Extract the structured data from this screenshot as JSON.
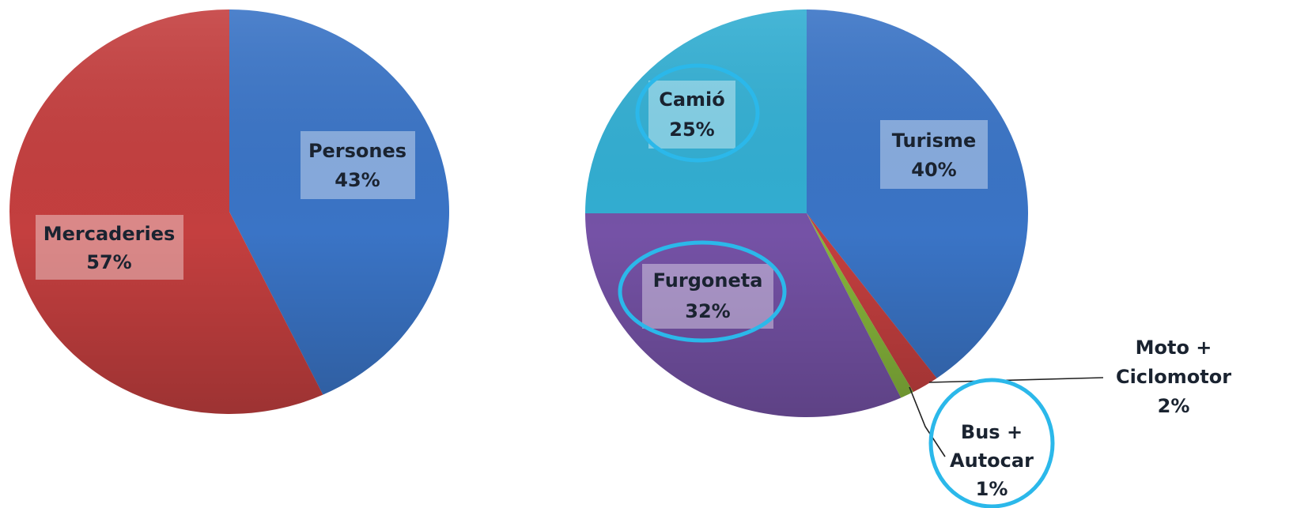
{
  "chart_data": [
    {
      "type": "pie",
      "slices": [
        {
          "label": "Persones",
          "pct_text": "43%",
          "value": 43,
          "color": "#3a74c6"
        },
        {
          "label": "Mercaderies",
          "pct_text": "57%",
          "value": 57,
          "color": "#c43f3f"
        }
      ]
    },
    {
      "type": "pie",
      "slices": [
        {
          "label": "Turisme",
          "pct_text": "40%",
          "value": 40,
          "color": "#3a74c6",
          "highlighted": false
        },
        {
          "label": "Moto + Ciclomotor",
          "pct_text": "2%",
          "value": 2,
          "color": "#c43f3f",
          "highlighted": false
        },
        {
          "label": "Bus + Autocar",
          "pct_text": "1%",
          "value": 1,
          "color": "#86b53b",
          "highlighted": true
        },
        {
          "label": "Furgoneta",
          "pct_text": "32%",
          "value": 32,
          "color": "#7552a6",
          "highlighted": true
        },
        {
          "label": "Camió",
          "pct_text": "25%",
          "value": 25,
          "color": "#32aed2",
          "highlighted": true
        }
      ]
    }
  ]
}
